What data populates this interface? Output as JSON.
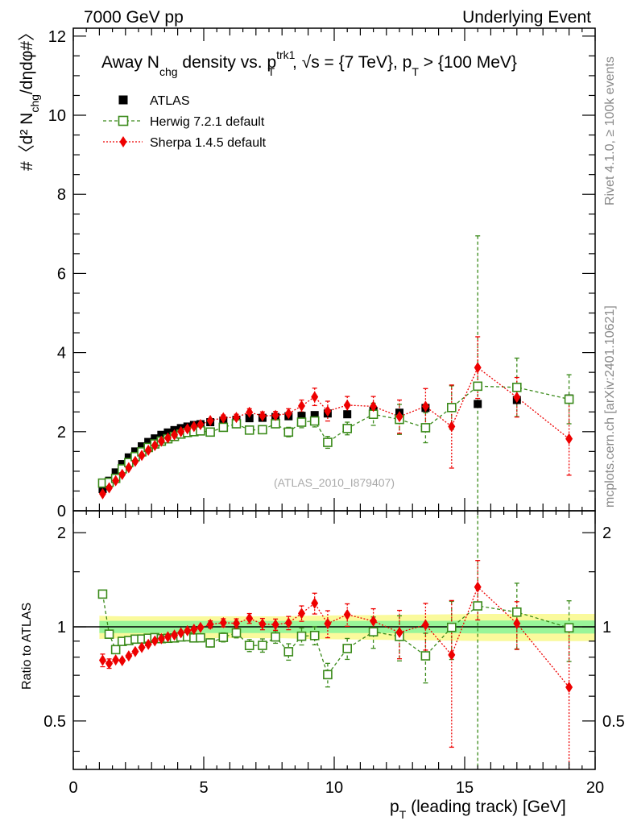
{
  "header": {
    "left": "7000 GeV pp",
    "right": "Underlying Event"
  },
  "side": {
    "rivet": "Rivet 4.1.0, ≥ 100k events",
    "mcplots": "mcplots.cern.ch [arXiv:2401.10621]"
  },
  "title": {
    "a": "Away N",
    "a_sub": "chg",
    "b": " density vs. p",
    "b_sup": "trk1",
    "b_sub": "T",
    "c": ", √s = {7 TeV}, p",
    "c_sub": "T",
    "d": " > {100 MeV}"
  },
  "ylabel": {
    "main": "#〈d² N",
    "main_sub": "chg",
    "main_end": "/dηdφ#〉",
    "ratio": "Ratio to ATLAS"
  },
  "xlabel": {
    "p": "p",
    "sub": "T",
    "rest": " (leading track) [GeV]"
  },
  "watermark": "(ATLAS_2010_I879407)",
  "legend": [
    {
      "label": "ATLAS"
    },
    {
      "label": "Herwig 7.2.1 default"
    },
    {
      "label": "Sherpa 1.4.5 default"
    }
  ],
  "colors": {
    "atlas": "#000000",
    "herwig": "#3a8a1a",
    "sherpa": "#ee0000",
    "band_inner": "#99f599",
    "band_outer": "#fafa9c"
  },
  "chart_data": {
    "type": "scatter",
    "xlim": [
      0,
      20
    ],
    "ylim_main": [
      0,
      12.2
    ],
    "ylim_ratio": [
      0.35,
      2.35
    ],
    "xticks": [
      "0",
      "5",
      "10",
      "15",
      "20"
    ],
    "yticks_main": [
      "0",
      "2",
      "4",
      "6",
      "8",
      "10",
      "12"
    ],
    "yticks_ratio": [
      "0.5",
      "1",
      "2"
    ],
    "band": {
      "x": [
        1.0,
        1.5,
        2,
        3,
        4,
        5,
        6,
        7,
        8,
        9,
        10,
        11,
        12,
        13,
        14,
        15,
        16,
        17,
        18,
        19,
        20
      ],
      "inner_lo": [
        0.955,
        0.955,
        0.955,
        0.955,
        0.955,
        0.955,
        0.955,
        0.955,
        0.955,
        0.955,
        0.955,
        0.955,
        0.955,
        0.955,
        0.955,
        0.953,
        0.952,
        0.952,
        0.952,
        0.952,
        0.952
      ],
      "inner_hi": [
        1.045,
        1.045,
        1.045,
        1.045,
        1.045,
        1.045,
        1.045,
        1.045,
        1.045,
        1.045,
        1.045,
        1.045,
        1.045,
        1.045,
        1.045,
        1.047,
        1.048,
        1.048,
        1.048,
        1.048,
        1.048
      ],
      "outer_lo": [
        0.915,
        0.918,
        0.92,
        0.92,
        0.92,
        0.92,
        0.92,
        0.92,
        0.92,
        0.915,
        0.912,
        0.91,
        0.908,
        0.906,
        0.904,
        0.902,
        0.9,
        0.9,
        0.9,
        0.9,
        0.9
      ],
      "outer_hi": [
        1.085,
        1.082,
        1.08,
        1.08,
        1.08,
        1.08,
        1.08,
        1.08,
        1.08,
        1.085,
        1.088,
        1.09,
        1.092,
        1.094,
        1.096,
        1.098,
        1.1,
        1.1,
        1.1,
        1.1,
        1.1
      ]
    },
    "series": [
      {
        "name": "ATLAS",
        "x": [
          1.125,
          1.375,
          1.625,
          1.875,
          2.125,
          2.375,
          2.625,
          2.875,
          3.125,
          3.375,
          3.625,
          3.875,
          4.125,
          4.375,
          4.625,
          4.875,
          5.25,
          5.75,
          6.25,
          6.75,
          7.25,
          7.75,
          8.25,
          8.75,
          9.25,
          9.75,
          10.5,
          11.5,
          12.5,
          13.5,
          14.5,
          15.5,
          17.0,
          19.0
        ],
        "y": [
          0.55,
          0.76,
          0.97,
          1.18,
          1.35,
          1.5,
          1.63,
          1.74,
          1.83,
          1.92,
          1.98,
          2.04,
          2.09,
          2.13,
          2.17,
          2.19,
          2.24,
          2.28,
          2.3,
          2.34,
          2.35,
          2.37,
          2.39,
          2.4,
          2.42,
          2.46,
          2.44,
          2.53,
          2.48,
          2.6,
          2.62,
          2.7,
          2.8,
          2.84
        ]
      },
      {
        "name": "Herwig 7.2.1 default",
        "x": [
          1.125,
          1.375,
          1.625,
          1.875,
          2.125,
          2.375,
          2.625,
          2.875,
          3.125,
          3.375,
          3.625,
          3.875,
          4.125,
          4.375,
          4.625,
          4.875,
          5.25,
          5.75,
          6.25,
          6.75,
          7.25,
          7.75,
          8.25,
          8.75,
          9.25,
          9.75,
          10.5,
          11.5,
          12.5,
          13.5,
          14.5,
          15.5,
          17.0,
          19.0
        ],
        "y": [
          0.7,
          0.72,
          0.82,
          1.06,
          1.22,
          1.37,
          1.49,
          1.6,
          1.69,
          1.76,
          1.82,
          1.88,
          1.94,
          1.98,
          2.0,
          2.02,
          1.99,
          2.11,
          2.2,
          2.04,
          2.05,
          2.2,
          1.99,
          2.24,
          2.27,
          1.73,
          2.08,
          2.44,
          2.31,
          2.1,
          2.61,
          3.15,
          3.12,
          2.82
        ],
        "err": [
          0.02,
          0.02,
          0.02,
          0.02,
          0.02,
          0.03,
          0.03,
          0.03,
          0.03,
          0.03,
          0.04,
          0.04,
          0.04,
          0.04,
          0.05,
          0.05,
          0.06,
          0.07,
          0.08,
          0.09,
          0.1,
          0.1,
          0.12,
          0.14,
          0.15,
          0.15,
          0.16,
          0.28,
          0.38,
          0.38,
          0.55,
          3.8,
          0.74,
          0.62
        ]
      },
      {
        "name": "Sherpa 1.4.5 default",
        "x": [
          1.125,
          1.375,
          1.625,
          1.875,
          2.125,
          2.375,
          2.625,
          2.875,
          3.125,
          3.375,
          3.625,
          3.875,
          4.125,
          4.375,
          4.625,
          4.875,
          5.25,
          5.75,
          6.25,
          6.75,
          7.25,
          7.75,
          8.25,
          8.75,
          9.25,
          9.75,
          10.5,
          11.5,
          12.5,
          13.5,
          14.5,
          15.5,
          17.0,
          19.0
        ],
        "y": [
          0.43,
          0.58,
          0.76,
          0.92,
          1.09,
          1.25,
          1.4,
          1.53,
          1.65,
          1.76,
          1.84,
          1.92,
          2.0,
          2.07,
          2.13,
          2.18,
          2.28,
          2.35,
          2.36,
          2.49,
          2.4,
          2.41,
          2.46,
          2.65,
          2.88,
          2.52,
          2.67,
          2.64,
          2.38,
          2.64,
          2.13,
          3.62,
          2.87,
          1.82
        ],
        "err": [
          0.02,
          0.02,
          0.02,
          0.02,
          0.02,
          0.03,
          0.03,
          0.03,
          0.03,
          0.03,
          0.04,
          0.04,
          0.04,
          0.04,
          0.05,
          0.05,
          0.06,
          0.07,
          0.08,
          0.09,
          0.1,
          0.1,
          0.12,
          0.15,
          0.22,
          0.25,
          0.22,
          0.25,
          0.42,
          0.45,
          1.05,
          0.78,
          0.5,
          0.92
        ]
      }
    ]
  }
}
